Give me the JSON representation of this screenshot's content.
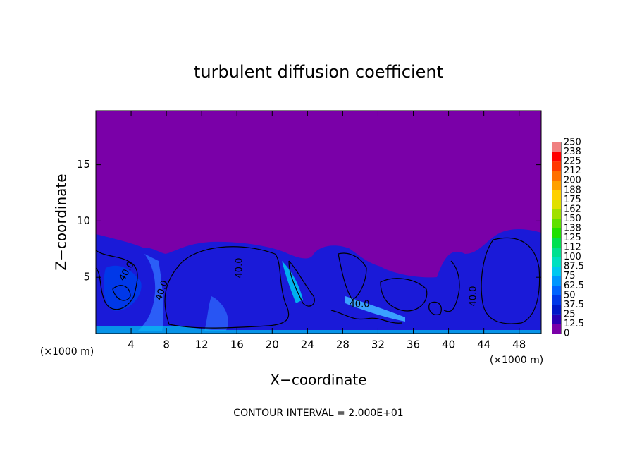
{
  "chart_data": {
    "type": "contour",
    "title": "turbulent diffusion coefficient",
    "xlabel": "X−coordinate",
    "ylabel": "Z−coordinate",
    "x_unit": "(×1000 m)",
    "y_unit": "(×1000 m)",
    "footnote": "CONTOUR INTERVAL = 2.000E+01",
    "contour_labels": [
      "40.0",
      "40.0",
      "40.0",
      "40.0",
      "40.0"
    ],
    "xlim": [
      0,
      50.5
    ],
    "ylim": [
      0,
      19.8
    ],
    "xticks": [
      4,
      8,
      12,
      16,
      20,
      24,
      28,
      32,
      36,
      40,
      44,
      48
    ],
    "yticks": [
      5,
      10,
      15
    ],
    "colorbar": {
      "levels": [
        0,
        12.5,
        25,
        37.5,
        50,
        62.5,
        75,
        87.5,
        100,
        112,
        125,
        138,
        150,
        162,
        175,
        188,
        200,
        212,
        225,
        238,
        250
      ],
      "colors": [
        "#7a00a8",
        "#2a00b4",
        "#0018c8",
        "#0038e8",
        "#0064ff",
        "#0096ff",
        "#00c8f0",
        "#00e0c0",
        "#00e090",
        "#00e050",
        "#20e000",
        "#60e000",
        "#a0e000",
        "#e0e000",
        "#ffd000",
        "#ffa000",
        "#ff7000",
        "#ff3800",
        "#ff0000",
        "#f08080"
      ]
    }
  }
}
